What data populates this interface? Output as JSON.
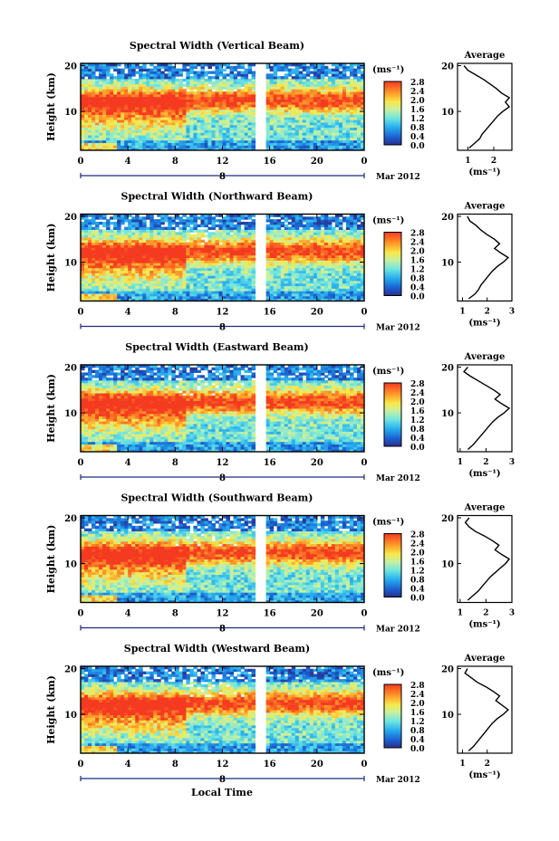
{
  "figure": {
    "xlabel": "Local Time",
    "date_label": "Mar 2012",
    "day_label": "8",
    "ylabel": "Height (km)",
    "colorbar_unit": "(ms⁻¹)",
    "colorbar_ticks": [
      "0.0",
      "0.4",
      "0.8",
      "1.2",
      "1.6",
      "2.0",
      "2.4",
      "2.8"
    ],
    "avg_title": "Average",
    "avg_xunit": "(ms⁻¹)"
  },
  "chart_data": [
    {
      "type": "heatmap",
      "title": "Spectral Width (Vertical Beam)",
      "xlabel": "Local Time",
      "ylabel": "Height (km)",
      "x_ticks": [
        "0",
        "4",
        "8",
        "12",
        "16",
        "20",
        "0"
      ],
      "y_ticks": [
        "10",
        "20"
      ],
      "xlim": [
        0,
        24
      ],
      "ylim": [
        1.5,
        20.5
      ],
      "colorbar_range": [
        0.0,
        2.8
      ],
      "data_gap_hours": [
        14.8,
        15.6
      ],
      "average_profile": {
        "title": "Average",
        "x_ticks": [
          "1",
          "2"
        ],
        "xlim": [
          0.6,
          2.7
        ],
        "heights": [
          2,
          3,
          4,
          5,
          6,
          7,
          8,
          9,
          10,
          11,
          12,
          13,
          14,
          15,
          16,
          17,
          18,
          19,
          20
        ],
        "values": [
          1.05,
          1.25,
          1.45,
          1.55,
          1.7,
          1.85,
          2.0,
          2.15,
          2.35,
          2.6,
          2.45,
          2.6,
          2.3,
          2.1,
          1.85,
          1.6,
          1.3,
          1.0,
          0.85
        ]
      }
    },
    {
      "type": "heatmap",
      "title": "Spectral Width (Northward Beam)",
      "xlabel": "Local Time",
      "ylabel": "Height (km)",
      "x_ticks": [
        "0",
        "4",
        "8",
        "12",
        "16",
        "20",
        "0"
      ],
      "y_ticks": [
        "10",
        "20"
      ],
      "xlim": [
        0,
        24
      ],
      "ylim": [
        1.5,
        20.5
      ],
      "colorbar_range": [
        0.0,
        2.8
      ],
      "data_gap_hours": [
        14.8,
        15.6
      ],
      "average_profile": {
        "title": "Average",
        "x_ticks": [
          "1",
          "2",
          "3"
        ],
        "xlim": [
          0.8,
          3.0
        ],
        "heights": [
          2,
          3,
          4,
          5,
          6,
          7,
          8,
          9,
          10,
          11,
          12,
          13,
          14,
          15,
          16,
          17,
          18,
          19,
          20
        ],
        "values": [
          1.25,
          1.5,
          1.65,
          1.75,
          1.9,
          2.05,
          2.2,
          2.4,
          2.65,
          2.85,
          2.55,
          2.3,
          2.5,
          2.3,
          2.0,
          1.75,
          1.55,
          1.3,
          1.2
        ]
      }
    },
    {
      "type": "heatmap",
      "title": "Spectral Width (Eastward Beam)",
      "xlabel": "Local Time",
      "ylabel": "Height (km)",
      "x_ticks": [
        "0",
        "4",
        "8",
        "12",
        "16",
        "20",
        "0"
      ],
      "y_ticks": [
        "10",
        "20"
      ],
      "xlim": [
        0,
        24
      ],
      "ylim": [
        1.5,
        20.5
      ],
      "colorbar_range": [
        0.0,
        2.8
      ],
      "data_gap_hours": [
        14.8,
        15.6
      ],
      "average_profile": {
        "title": "Average",
        "x_ticks": [
          "1",
          "2",
          "3"
        ],
        "xlim": [
          0.9,
          3.0
        ],
        "heights": [
          2,
          3,
          4,
          5,
          6,
          7,
          8,
          9,
          10,
          11,
          12,
          13,
          14,
          15,
          16,
          17,
          18,
          19,
          20
        ],
        "values": [
          1.3,
          1.5,
          1.65,
          1.8,
          1.95,
          2.1,
          2.25,
          2.45,
          2.7,
          2.9,
          2.6,
          2.35,
          2.55,
          2.3,
          2.0,
          1.7,
          1.4,
          1.15,
          1.3
        ]
      }
    },
    {
      "type": "heatmap",
      "title": "Spectral Width (Southward Beam)",
      "xlabel": "Local Time",
      "ylabel": "Height (km)",
      "x_ticks": [
        "0",
        "4",
        "8",
        "12",
        "16",
        "20",
        "0"
      ],
      "y_ticks": [
        "10",
        "20"
      ],
      "xlim": [
        0,
        24
      ],
      "ylim": [
        1.5,
        20.5
      ],
      "colorbar_range": [
        0.0,
        2.8
      ],
      "data_gap_hours": [
        14.8,
        15.6
      ],
      "average_profile": {
        "title": "Average",
        "x_ticks": [
          "1",
          "2",
          "3"
        ],
        "xlim": [
          0.9,
          3.0
        ],
        "heights": [
          2,
          3,
          4,
          5,
          6,
          7,
          8,
          9,
          10,
          11,
          12,
          13,
          14,
          15,
          16,
          17,
          18,
          19,
          20
        ],
        "values": [
          1.3,
          1.5,
          1.7,
          1.85,
          2.0,
          2.15,
          2.35,
          2.55,
          2.75,
          2.9,
          2.6,
          2.35,
          2.5,
          2.25,
          1.95,
          1.6,
          1.35,
          1.2,
          1.35
        ]
      }
    },
    {
      "type": "heatmap",
      "title": "Spectral Width (Westward Beam)",
      "xlabel": "Local Time",
      "ylabel": "Height (km)",
      "x_ticks": [
        "0",
        "4",
        "8",
        "12",
        "16",
        "20",
        "0"
      ],
      "y_ticks": [
        "10",
        "20"
      ],
      "xlim": [
        0,
        24
      ],
      "ylim": [
        1.5,
        20.5
      ],
      "colorbar_range": [
        0.0,
        2.8
      ],
      "data_gap_hours": [
        14.8,
        15.6
      ],
      "average_profile": {
        "title": "Average",
        "x_ticks": [
          "1",
          "2"
        ],
        "xlim": [
          0.8,
          3.0
        ],
        "heights": [
          2,
          3,
          4,
          5,
          6,
          7,
          8,
          9,
          10,
          11,
          12,
          13,
          14,
          15,
          16,
          17,
          18,
          19,
          20
        ],
        "values": [
          1.25,
          1.45,
          1.6,
          1.75,
          1.9,
          2.05,
          2.2,
          2.4,
          2.65,
          2.85,
          2.6,
          2.35,
          2.5,
          2.25,
          1.95,
          1.6,
          1.35,
          1.1,
          1.2
        ]
      }
    }
  ]
}
